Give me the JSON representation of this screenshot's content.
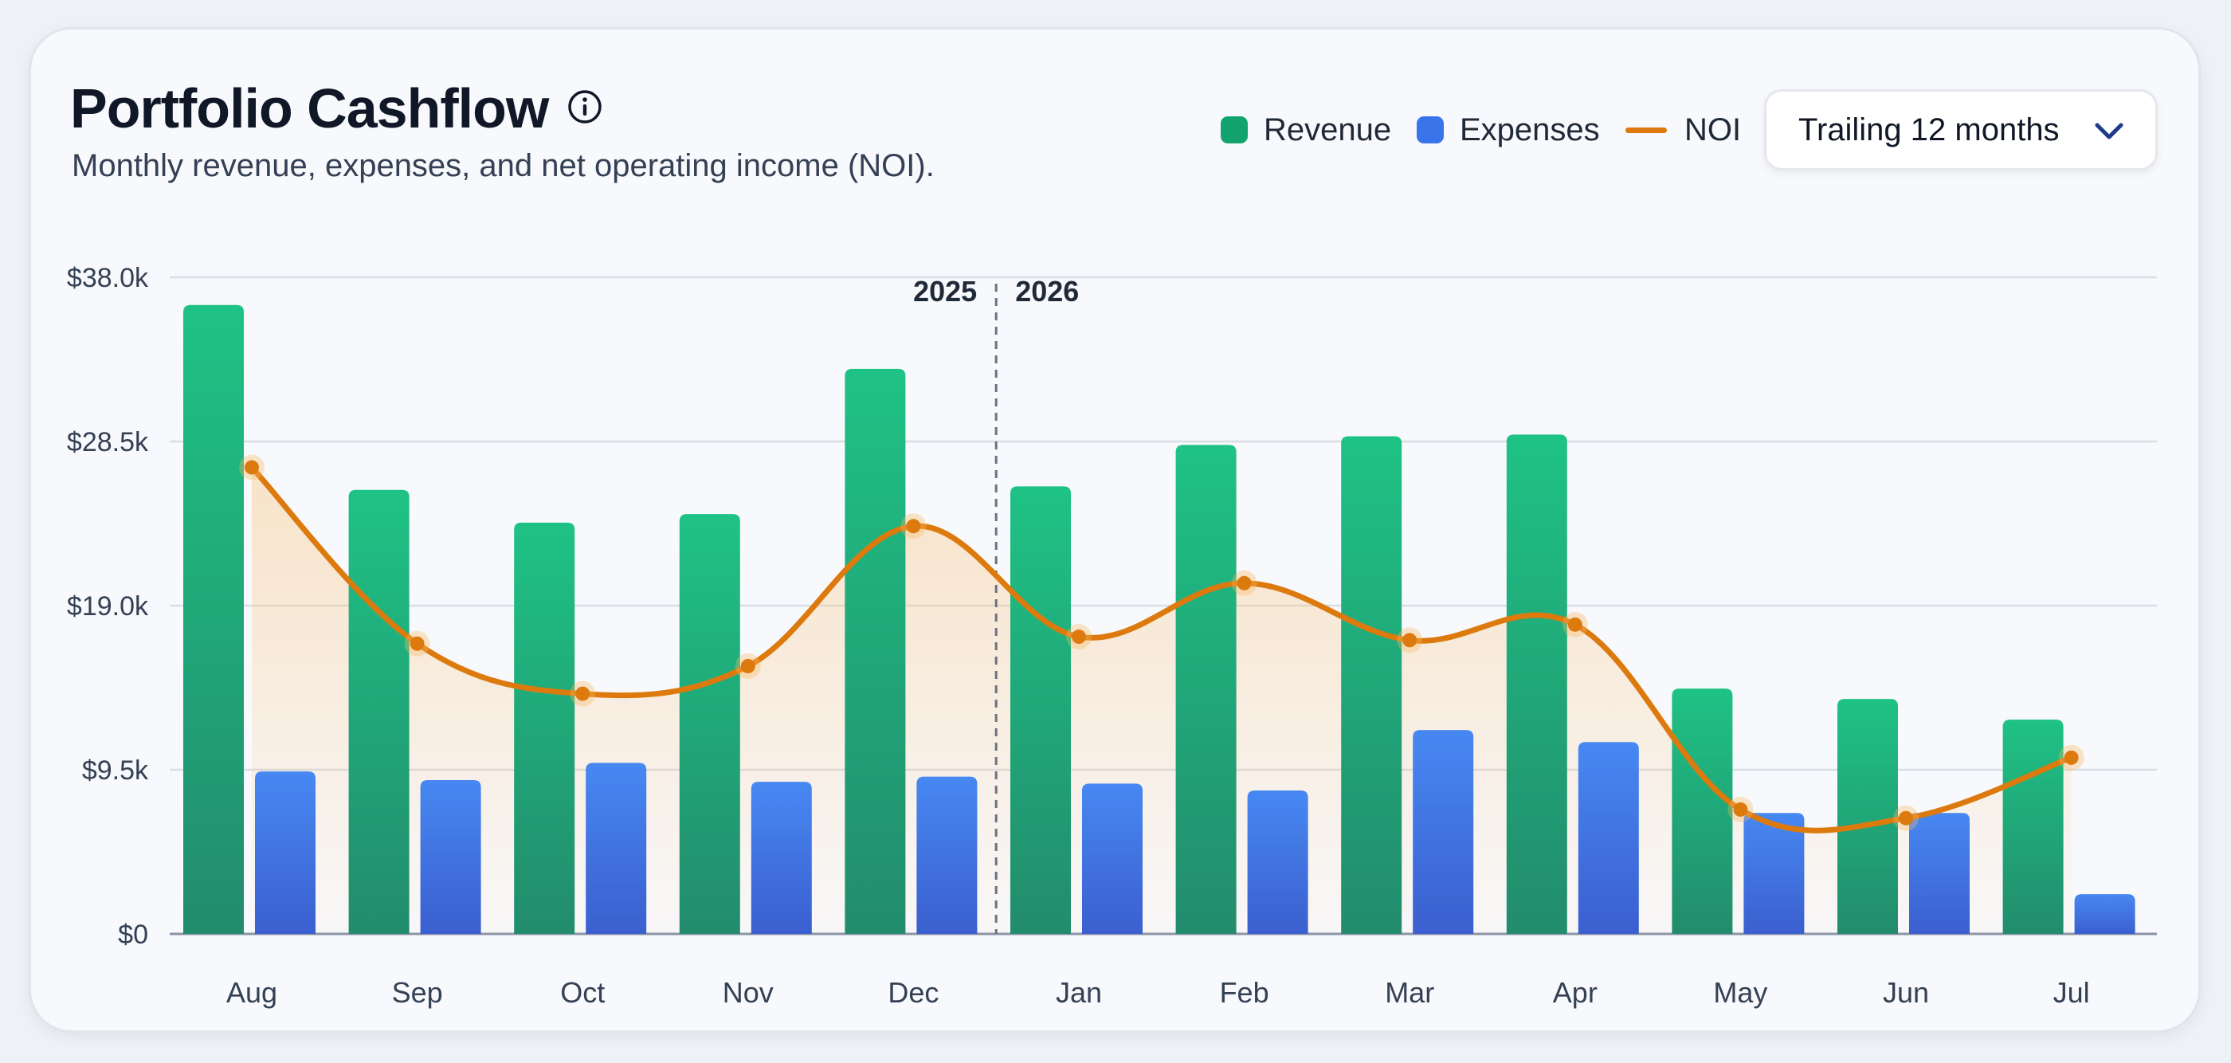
{
  "header": {
    "title": "Portfolio Cashflow",
    "subtitle": "Monthly revenue, expenses, and net operating income (NOI).",
    "info_icon": "info-icon"
  },
  "legend": {
    "revenue": "Revenue",
    "expenses": "Expenses",
    "noi": "NOI"
  },
  "period_select": {
    "value": "Trailing 12 months",
    "icon": "chevron-down-icon"
  },
  "colors": {
    "revenue": "#1fbe83",
    "expenses": "#3f7bea",
    "noi": "#dd7a0e"
  },
  "chart_data": {
    "type": "bar",
    "title": "Portfolio Cashflow",
    "subtitle": "Monthly revenue, expenses, and net operating income (NOI).",
    "categories": [
      "Aug",
      "Sep",
      "Oct",
      "Nov",
      "Dec",
      "Jan",
      "Feb",
      "Mar",
      "Apr",
      "May",
      "Jun",
      "Jul"
    ],
    "series": [
      {
        "name": "Revenue",
        "type": "bar",
        "values": [
          36400,
          25700,
          23800,
          24300,
          32700,
          25900,
          28300,
          28800,
          28900,
          14200,
          13600,
          12400
        ]
      },
      {
        "name": "Expenses",
        "type": "bar",
        "values": [
          9400,
          8900,
          9900,
          8800,
          9100,
          8700,
          8300,
          11800,
          11100,
          7000,
          7000,
          2300
        ]
      },
      {
        "name": "NOI",
        "type": "line",
        "values": [
          27000,
          16800,
          13900,
          15500,
          23600,
          17200,
          20300,
          17000,
          17900,
          7200,
          6700,
          10200
        ]
      }
    ],
    "y_ticks": [
      "$0",
      "$9.5k",
      "$19.0k",
      "$28.5k",
      "$38.0k"
    ],
    "ylim": [
      0,
      38000
    ],
    "year_divider": {
      "after_category": "Dec",
      "left_label": "2025",
      "right_label": "2026"
    },
    "grid": true,
    "legend_position": "top-right"
  }
}
